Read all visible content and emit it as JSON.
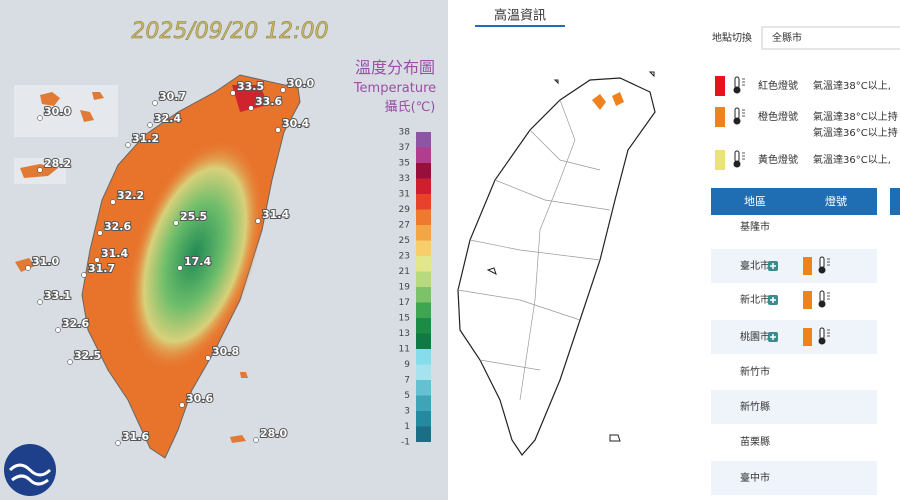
{
  "weather_map": {
    "timestamp": "2025/09/20 12:00",
    "legend_title": "溫度分布圖",
    "legend_subtitle": "Temperature",
    "legend_unit": "攝氏(℃)",
    "scale_ticks": [
      38,
      37,
      35,
      33,
      31,
      29,
      27,
      25,
      23,
      21,
      19,
      17,
      15,
      13,
      11,
      9,
      7,
      5,
      3,
      1,
      -1
    ],
    "stations": [
      "30.0",
      "33.5",
      "33.6",
      "30.7",
      "32.4",
      "30.4",
      "31.2",
      "30.0",
      "28.2",
      "32.2",
      "25.5",
      "31.4",
      "32.6",
      "31.4",
      "17.4",
      "31.7",
      "31.0",
      "33.1",
      "32.6",
      "32.5",
      "30.8",
      "30.6",
      "31.6",
      "28.0"
    ]
  },
  "high_temp_panel": {
    "title": "高溫資訊",
    "location_label": "地點切換",
    "location_value": "全縣市",
    "legend": [
      {
        "light": "紅色燈號",
        "color": "#e8141b",
        "lines": [
          "氣溫達38°C以上,"
        ]
      },
      {
        "light": "橙色燈號",
        "color": "#f0821e",
        "lines": [
          "氣溫達38°C以上持",
          "氣溫達36°C以上持"
        ]
      },
      {
        "light": "黃色燈號",
        "color": "#ece27a",
        "lines": [
          "氣溫達36°C以上,"
        ]
      }
    ],
    "table": {
      "headers": [
        "地區",
        "燈號"
      ],
      "rows": [
        {
          "name": "基隆市"
        },
        {
          "name": "臺北市",
          "signal_color": "#f0821e"
        },
        {
          "name": "新北市",
          "signal_color": "#f0821e"
        },
        {
          "name": "桃園市",
          "signal_color": "#f0821e"
        },
        {
          "name": "新竹市"
        },
        {
          "name": "新竹縣"
        },
        {
          "name": "苗栗縣"
        },
        {
          "name": "臺中市"
        }
      ]
    }
  }
}
